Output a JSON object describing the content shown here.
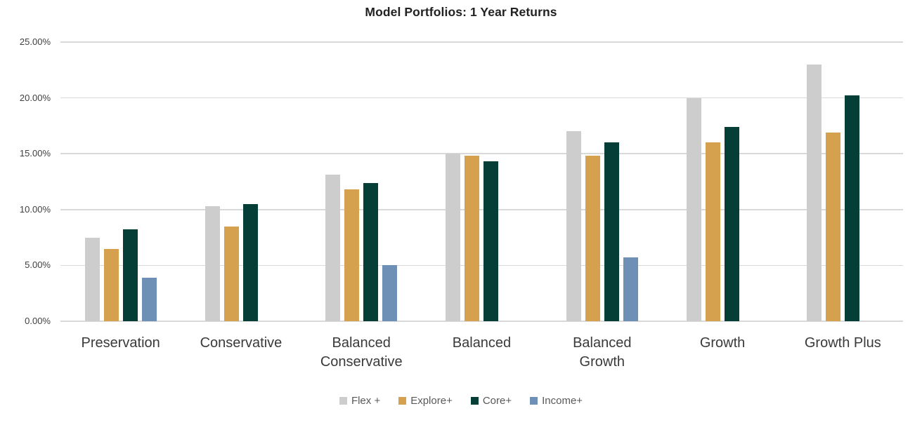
{
  "chart_data": {
    "type": "bar",
    "title": "Model Portfolios: 1 Year Returns",
    "categories": [
      "Preservation",
      "Conservative",
      "Balanced Conservative",
      "Balanced",
      "Balanced Growth",
      "Growth",
      "Growth Plus"
    ],
    "series": [
      {
        "name": "Flex +",
        "color": "#cdcdcd",
        "values": [
          7.5,
          10.3,
          13.1,
          15.0,
          17.0,
          20.0,
          23.0
        ]
      },
      {
        "name": "Explore+",
        "color": "#d6a14e",
        "values": [
          6.5,
          8.5,
          11.8,
          14.8,
          14.8,
          16.0,
          16.9
        ]
      },
      {
        "name": "Core+",
        "color": "#043e36",
        "values": [
          8.2,
          10.5,
          12.4,
          14.3,
          16.0,
          17.4,
          20.2
        ]
      },
      {
        "name": "Income+",
        "color": "#6e90b6",
        "values": [
          3.9,
          null,
          5.0,
          null,
          5.7,
          null,
          null
        ]
      }
    ],
    "xlabel": "",
    "ylabel": "",
    "ylim": [
      0,
      25
    ],
    "ytick_step": 5,
    "ytick_labels": [
      "0.00%",
      "5.00%",
      "10.00%",
      "15.00%",
      "20.00%",
      "25.00%"
    ],
    "grid": true,
    "gridline_color": "#d9d9d9",
    "legend_position": "bottom"
  }
}
